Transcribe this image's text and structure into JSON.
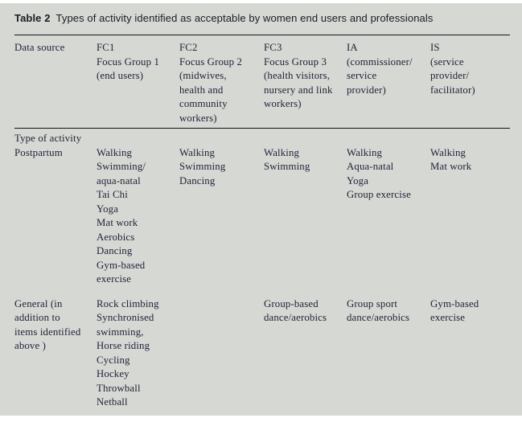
{
  "title": {
    "label": "Table 2",
    "text": "Types of activity identified as acceptable by women end users and professionals"
  },
  "header": {
    "data_source_label": "Data source",
    "columns": [
      {
        "lines": [
          "FC1",
          "Focus Group 1",
          "(end users)"
        ]
      },
      {
        "lines": [
          "FC2",
          "Focus Group 2",
          "(midwives,",
          "health and",
          "community",
          "workers)"
        ]
      },
      {
        "lines": [
          "FC3",
          "Focus Group 3",
          "(health visitors,",
          "nursery and link",
          "workers)"
        ]
      },
      {
        "lines": [
          "IA",
          "(commissioner/",
          "service",
          "provider)"
        ]
      },
      {
        "lines": [
          "IS",
          "(service",
          "provider/",
          "facilitator)"
        ]
      }
    ]
  },
  "body": {
    "section_label": "Type of activity",
    "rows": [
      {
        "label_lines": [
          "Postpartum"
        ],
        "cells": [
          [
            "Walking",
            "Swimming/",
            "aqua-natal",
            "Tai Chi",
            "Yoga",
            "Mat work",
            "Aerobics",
            "Dancing",
            "Gym-based",
            "exercise"
          ],
          [
            "Walking",
            "Swimming",
            "Dancing"
          ],
          [
            "Walking",
            "Swimming"
          ],
          [
            "Walking",
            "Aqua-natal",
            "Yoga",
            "Group exercise"
          ],
          [
            "Walking",
            "Mat work"
          ]
        ]
      },
      {
        "label_lines": [
          "General (in",
          "addition to",
          "items identified",
          "above )"
        ],
        "cells": [
          [
            "Rock climbing",
            "Synchronised",
            "swimming,",
            "Horse riding",
            "Cycling",
            "Hockey",
            "Throwball",
            "Netball"
          ],
          [],
          [
            "Group-based",
            "dance/aerobics"
          ],
          [
            "Group sport",
            "dance/aerobics"
          ],
          [
            "Gym-based",
            "exercise"
          ]
        ]
      }
    ]
  },
  "colors": {
    "panel_background": "#d6d8d3",
    "text": "#23233a",
    "rule": "#131318"
  }
}
